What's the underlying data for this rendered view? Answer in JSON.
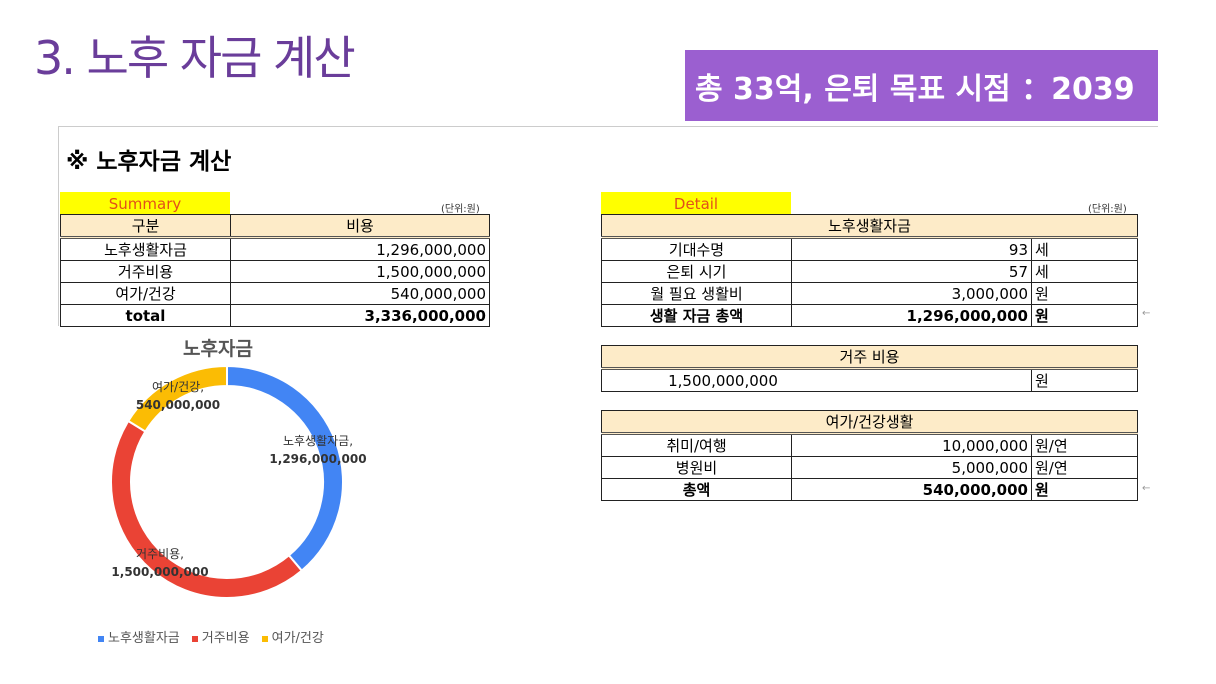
{
  "slide": {
    "title": "3. 노후 자금 계산",
    "goal": "총 33억, 은퇴 목표 시점 ：2039"
  },
  "sheet": {
    "title": "※ 노후자금 계산",
    "unit": "(단위:원)"
  },
  "summary": {
    "tag": "Summary",
    "headers": [
      "구분",
      "비용"
    ],
    "rows": [
      [
        "노후생활자금",
        "1,296,000,000"
      ],
      [
        "거주비용",
        "1,500,000,000"
      ],
      [
        "여가/건강",
        "540,000,000"
      ],
      [
        "total",
        "3,336,000,000"
      ]
    ]
  },
  "detail": {
    "tag": "Detail",
    "living": {
      "title": "노후생활자금",
      "rows": [
        [
          "기대수명",
          "93",
          "세"
        ],
        [
          "은퇴 시기",
          "57",
          "세"
        ],
        [
          "월 필요 생활비",
          "3,000,000",
          "원"
        ],
        [
          "생활 자금 총액",
          "1,296,000,000",
          "원"
        ]
      ]
    },
    "housing": {
      "title": "거주 비용",
      "value": "1,500,000,000",
      "unit": "원"
    },
    "leisure": {
      "title": "여가/건강생활",
      "rows": [
        [
          "취미/여행",
          "10,000,000",
          "원/연"
        ],
        [
          "병원비",
          "5,000,000",
          "원/연"
        ],
        [
          "총액",
          "540,000,000",
          "원"
        ]
      ]
    },
    "arrow": "←"
  },
  "chart_data": {
    "type": "pie",
    "title": "노후자금",
    "donut": true,
    "categories": [
      "노후생활자금",
      "거주비용",
      "여가/건강"
    ],
    "values": [
      1296000000,
      1500000000,
      540000000
    ],
    "value_labels": [
      "1,296,000,000",
      "1,500,000,000",
      "540,000,000"
    ],
    "colors": [
      "#4285f4",
      "#ea4335",
      "#fbbc04"
    ],
    "legend": "bottom"
  }
}
